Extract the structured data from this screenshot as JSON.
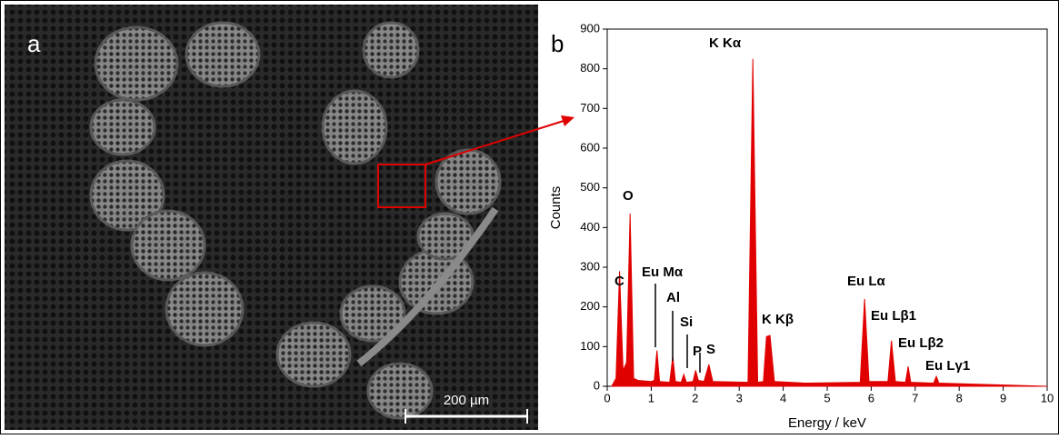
{
  "panel_a": {
    "label": "a",
    "scale_bar": "200 µm"
  },
  "chart_data": {
    "type": "area",
    "label": "b",
    "x_label": "Energy / keV",
    "y_label": "Counts",
    "x": [
      0.1,
      0.2,
      0.28,
      0.36,
      0.44,
      0.52,
      0.6,
      0.7,
      1.0,
      1.07,
      1.13,
      1.19,
      1.42,
      1.49,
      1.55,
      1.68,
      1.74,
      1.8,
      1.95,
      2.01,
      2.07,
      2.2,
      2.31,
      2.4,
      3.2,
      3.31,
      3.42,
      3.55,
      3.62,
      3.7,
      3.8,
      4.5,
      5.75,
      5.85,
      5.95,
      6.38,
      6.46,
      6.55,
      6.78,
      6.84,
      6.9,
      7.42,
      7.48,
      7.54,
      8.5,
      10
    ],
    "values": [
      0,
      20,
      290,
      40,
      60,
      435,
      20,
      15,
      12,
      15,
      90,
      12,
      10,
      75,
      12,
      10,
      30,
      10,
      12,
      40,
      15,
      12,
      55,
      12,
      10,
      825,
      10,
      12,
      125,
      128,
      12,
      8,
      10,
      220,
      12,
      12,
      115,
      12,
      10,
      50,
      10,
      8,
      25,
      8,
      5,
      0
    ],
    "color": "#e00000",
    "xlim": [
      0,
      10
    ],
    "xticks": [
      0,
      1,
      2,
      3,
      4,
      5,
      6,
      7,
      8,
      9,
      10
    ],
    "ylim": [
      0,
      900
    ],
    "yticks": [
      0,
      100,
      200,
      300,
      400,
      500,
      600,
      700,
      800,
      900
    ],
    "annotations": [
      "C",
      "O",
      "Eu Mα",
      "Al",
      "Si",
      "P",
      "S",
      "K Kα",
      "K Kβ",
      "Eu Lα",
      "Eu Lβ1",
      "Eu Lβ2",
      "Eu Lγ1"
    ]
  }
}
